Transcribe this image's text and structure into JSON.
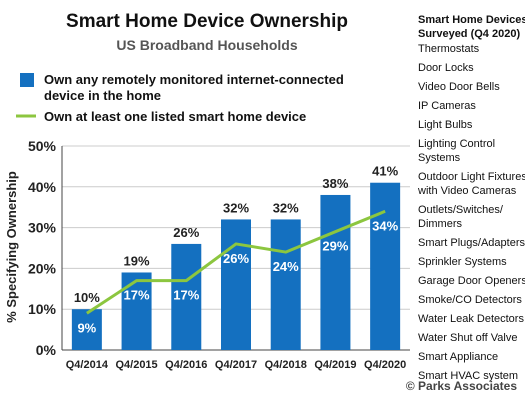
{
  "chart_data": {
    "type": "bar",
    "title": "Smart Home Device Ownership",
    "subtitle": "US Broadband Households",
    "ylabel": "% Specifying Ownership",
    "xlabel": "",
    "ylim": [
      0,
      50
    ],
    "yticks": [
      0,
      10,
      20,
      30,
      40,
      50
    ],
    "ytick_labels": [
      "0%",
      "10%",
      "20%",
      "30%",
      "40%",
      "50%"
    ],
    "grid": true,
    "legend_position": "top-left",
    "categories": [
      "Q4/2014",
      "Q4/2015",
      "Q4/2016",
      "Q4/2017",
      "Q4/2018",
      "Q4/2019",
      "Q4/2020"
    ],
    "series": [
      {
        "name": "Own any remotely monitored internet-connected device in the home",
        "type": "bar",
        "color": "#1470c0",
        "values": [
          10,
          19,
          26,
          32,
          32,
          38,
          41
        ],
        "labels": [
          "10%",
          "19%",
          "26%",
          "32%",
          "32%",
          "38%",
          "41%"
        ]
      },
      {
        "name": "Own at least one listed smart home device",
        "type": "line",
        "color": "#8cc63f",
        "values": [
          9,
          17,
          17,
          26,
          24,
          29,
          34
        ],
        "labels": [
          "9%",
          "17%",
          "17%",
          "26%",
          "24%",
          "29%",
          "34%"
        ]
      }
    ],
    "colors": {
      "axis": "#444444",
      "grid": "#cccccc",
      "label_on_bar": "#ffffff"
    }
  },
  "sidebar": {
    "title": "Smart Home Devices Surveyed (Q4 2020)",
    "items": [
      "Thermostats",
      "Door Locks",
      "Video Door Bells",
      "IP Cameras",
      "Light Bulbs",
      "Lighting Control Systems",
      "Outdoor Light Fixtures with Video Cameras",
      "Outlets/Switches/ Dimmers",
      "Smart Plugs/Adapters",
      "Sprinkler Systems",
      "Garage Door Openers",
      "Smoke/CO Detectors",
      "Water Leak Detectors",
      "Water Shut off Valve",
      "Smart Appliance",
      "Smart HVAC system"
    ]
  },
  "footer": {
    "source": "© Parks Associates"
  }
}
